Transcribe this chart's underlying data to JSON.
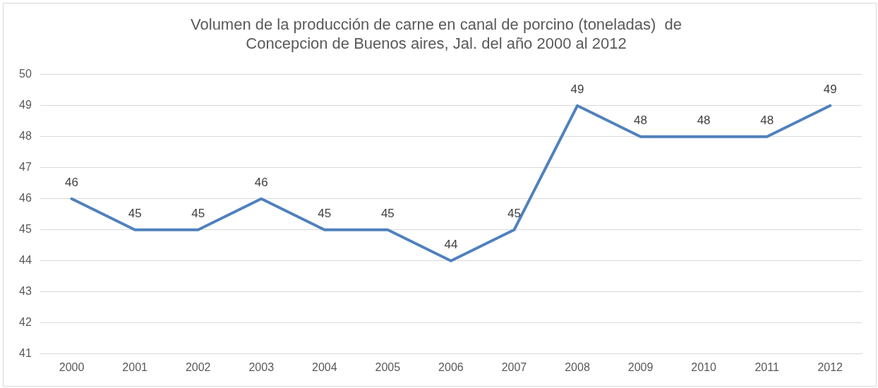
{
  "chart_data": {
    "type": "line",
    "title": "Volumen de la producción de carne en canal de porcino (toneladas)  de Concepcion de Buenos aires, Jal. del año 2000 al 2012",
    "categories": [
      "2000",
      "2001",
      "2002",
      "2003",
      "2004",
      "2005",
      "2006",
      "2007",
      "2008",
      "2009",
      "2010",
      "2011",
      "2012"
    ],
    "series": [
      {
        "color": "#4f81bd",
        "values": [
          46,
          45,
          45,
          46,
          45,
          45,
          44,
          45,
          49,
          48,
          48,
          48,
          49
        ]
      }
    ],
    "ylim": [
      41,
      50
    ],
    "yticks": [
      41,
      42,
      43,
      44,
      45,
      46,
      47,
      48,
      49,
      50
    ],
    "grid": "y",
    "legend": false,
    "marker": "none",
    "line_style": "solid",
    "data_labels": true
  }
}
